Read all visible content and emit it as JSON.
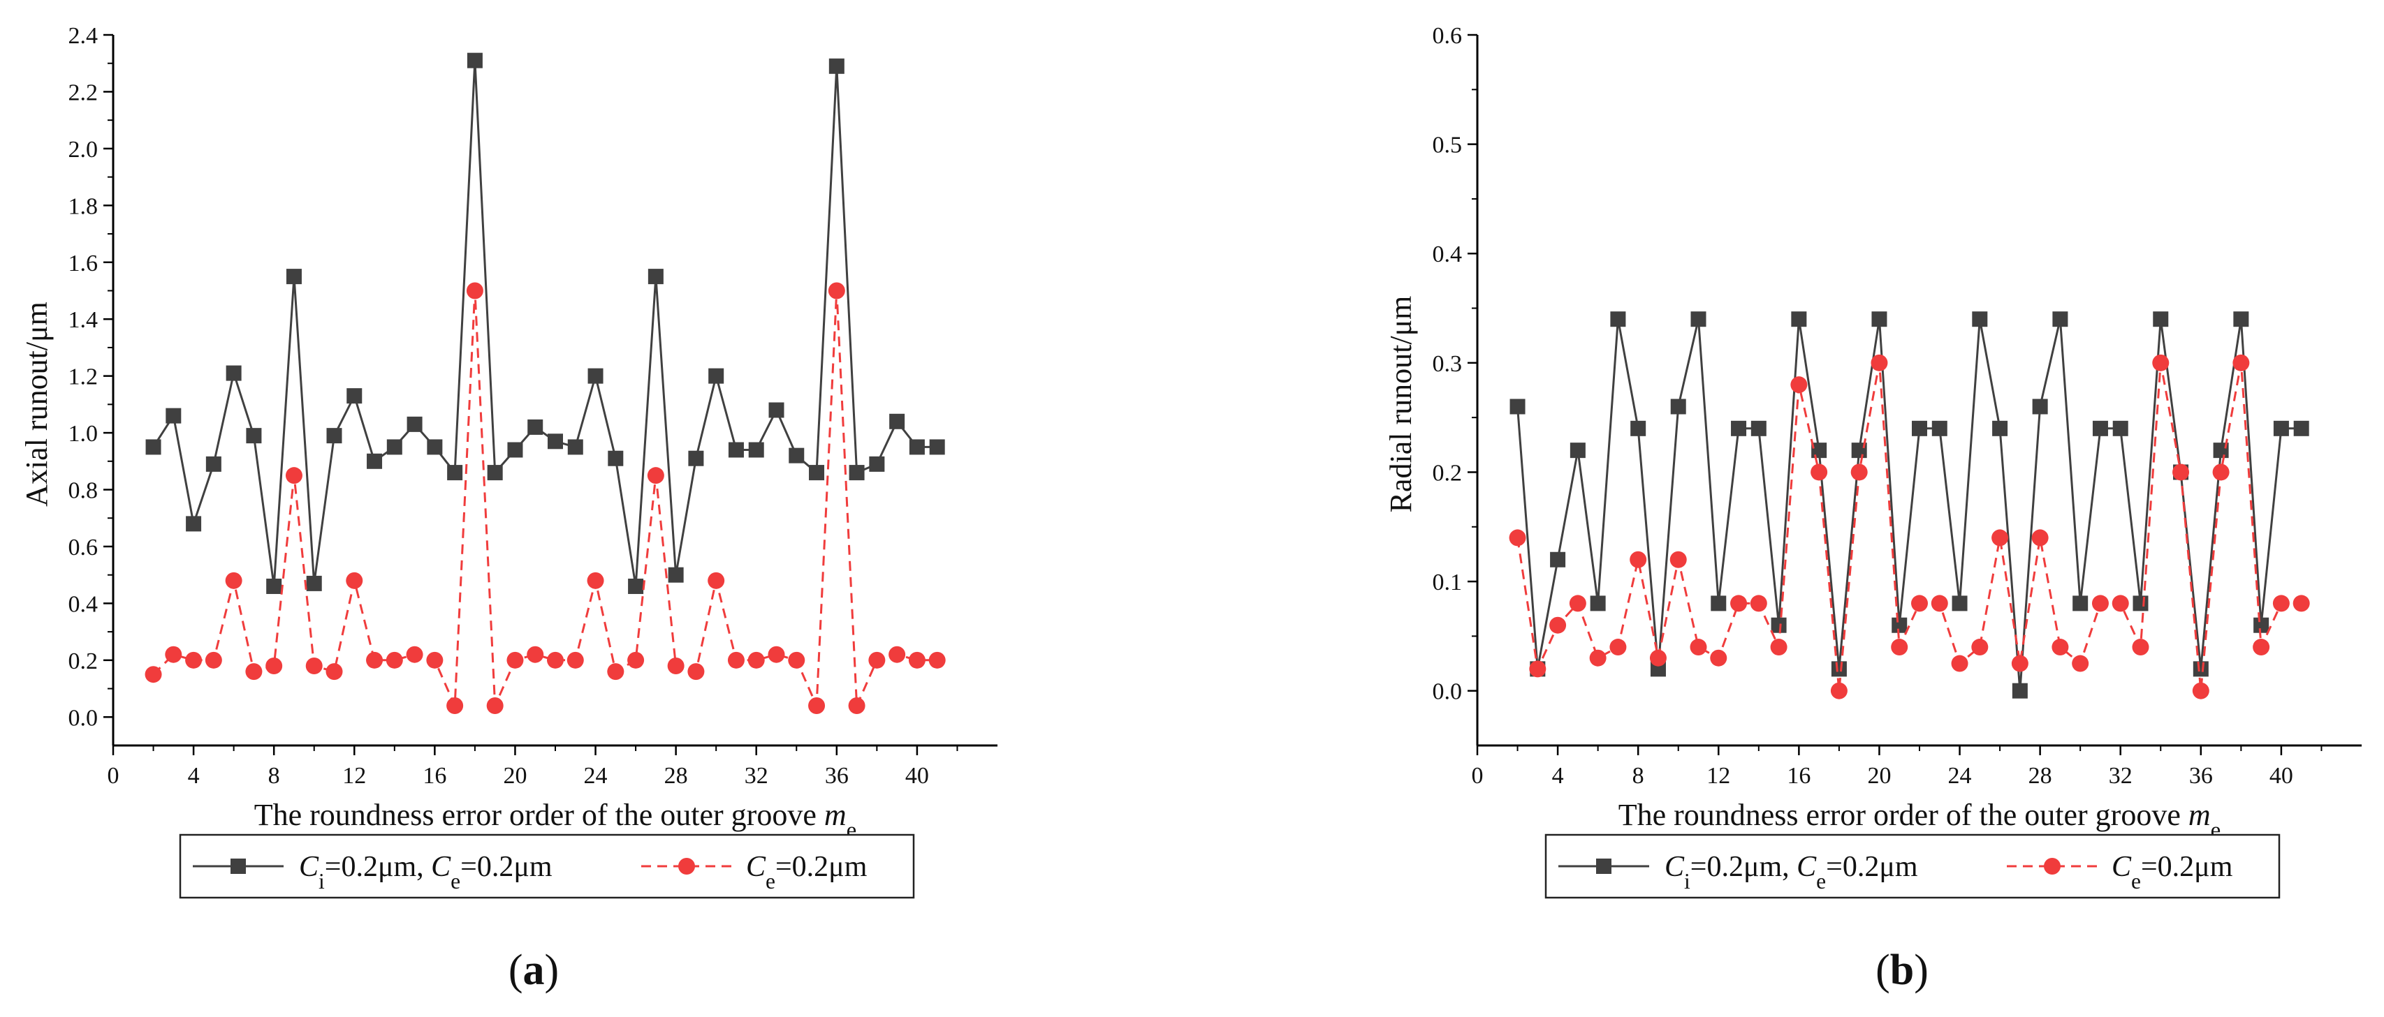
{
  "chart_data": [
    {
      "type": "line",
      "panel_label": "a",
      "xlabel": "The roundness error order of the outer groove",
      "xlabel_var": "m",
      "xlabel_sub": "e",
      "ylabel": "Axial runout/μm",
      "xlim": [
        0,
        44
      ],
      "ylim": [
        -0.1,
        2.4
      ],
      "xticks": [
        0,
        4,
        8,
        12,
        16,
        20,
        24,
        28,
        32,
        36,
        40
      ],
      "yticks": [
        0.0,
        0.2,
        0.4,
        0.6,
        0.8,
        1.0,
        1.2,
        1.4,
        1.6,
        1.8,
        2.0,
        2.2,
        2.4
      ],
      "ytick_decimals": 1,
      "x": [
        2,
        3,
        4,
        5,
        6,
        7,
        8,
        9,
        10,
        11,
        12,
        13,
        14,
        15,
        16,
        17,
        18,
        19,
        20,
        21,
        22,
        23,
        24,
        25,
        26,
        27,
        28,
        29,
        30,
        31,
        32,
        33,
        34,
        35,
        36,
        37,
        38,
        39,
        40,
        41
      ],
      "series": [
        {
          "name": "Ci=0.2μm, Ce=0.2μm",
          "legend_parts": [
            "C",
            "i",
            "=0.2μm, ",
            "C",
            "e",
            "=0.2μm"
          ],
          "color": "#404040",
          "marker": "square",
          "linestyle": "solid",
          "values": [
            0.95,
            1.06,
            0.68,
            0.89,
            1.21,
            0.99,
            0.46,
            1.55,
            0.47,
            0.99,
            1.13,
            0.9,
            0.95,
            1.03,
            0.95,
            0.86,
            2.31,
            0.86,
            0.94,
            1.02,
            0.97,
            0.95,
            1.2,
            0.91,
            0.46,
            1.55,
            0.5,
            0.91,
            1.2,
            0.94,
            0.94,
            1.08,
            0.92,
            0.86,
            2.29,
            0.86,
            0.89,
            1.04,
            0.95,
            0.95
          ]
        },
        {
          "name": "Ce=0.2μm",
          "legend_parts": [
            "C",
            "e",
            "=0.2μm"
          ],
          "color": "#f03c3c",
          "marker": "circle",
          "linestyle": "dashed",
          "values": [
            0.15,
            0.22,
            0.2,
            0.2,
            0.48,
            0.16,
            0.18,
            0.85,
            0.18,
            0.16,
            0.48,
            0.2,
            0.2,
            0.22,
            0.2,
            0.04,
            1.5,
            0.04,
            0.2,
            0.22,
            0.2,
            0.2,
            0.48,
            0.16,
            0.2,
            0.85,
            0.18,
            0.16,
            0.48,
            0.2,
            0.2,
            0.22,
            0.2,
            0.04,
            1.5,
            0.04,
            0.2,
            0.22,
            0.2,
            0.2
          ]
        }
      ]
    },
    {
      "type": "line",
      "panel_label": "b",
      "xlabel": "The roundness error order of the outer groove",
      "xlabel_var": "m",
      "xlabel_sub": "e",
      "ylabel": "Radial runout/μm",
      "xlim": [
        0,
        44
      ],
      "ylim": [
        -0.05,
        0.6
      ],
      "xticks": [
        0,
        4,
        8,
        12,
        16,
        20,
        24,
        28,
        32,
        36,
        40
      ],
      "yticks": [
        0.0,
        0.1,
        0.2,
        0.3,
        0.4,
        0.5,
        0.6
      ],
      "ytick_decimals": 1,
      "x": [
        2,
        3,
        4,
        5,
        6,
        7,
        8,
        9,
        10,
        11,
        12,
        13,
        14,
        15,
        16,
        17,
        18,
        19,
        20,
        21,
        22,
        23,
        24,
        25,
        26,
        27,
        28,
        29,
        30,
        31,
        32,
        33,
        34,
        35,
        36,
        37,
        38,
        39,
        40,
        41
      ],
      "series": [
        {
          "name": "Ci=0.2μm, Ce=0.2μm",
          "legend_parts": [
            "C",
            "i",
            "=0.2μm, ",
            "C",
            "e",
            "=0.2μm"
          ],
          "color": "#404040",
          "marker": "square",
          "linestyle": "solid",
          "values": [
            0.26,
            0.02,
            0.12,
            0.22,
            0.08,
            0.34,
            0.24,
            0.02,
            0.26,
            0.34,
            0.08,
            0.24,
            0.24,
            0.06,
            0.34,
            0.22,
            0.02,
            0.22,
            0.34,
            0.06,
            0.24,
            0.24,
            0.08,
            0.34,
            0.24,
            0.0,
            0.26,
            0.34,
            0.08,
            0.24,
            0.24,
            0.08,
            0.34,
            0.2,
            0.02,
            0.22,
            0.34,
            0.06,
            0.24,
            0.24
          ]
        },
        {
          "name": "Ce=0.2μm",
          "legend_parts": [
            "C",
            "e",
            "=0.2μm"
          ],
          "color": "#f03c3c",
          "marker": "circle",
          "linestyle": "dashed",
          "values": [
            0.14,
            0.02,
            0.06,
            0.08,
            0.03,
            0.04,
            0.12,
            0.03,
            0.12,
            0.04,
            0.03,
            0.08,
            0.08,
            0.04,
            0.28,
            0.2,
            0.0,
            0.2,
            0.3,
            0.04,
            0.08,
            0.08,
            0.025,
            0.04,
            0.14,
            0.025,
            0.14,
            0.04,
            0.025,
            0.08,
            0.08,
            0.04,
            0.3,
            0.2,
            0.0,
            0.2,
            0.3,
            0.04,
            0.08,
            0.08
          ]
        }
      ]
    }
  ]
}
